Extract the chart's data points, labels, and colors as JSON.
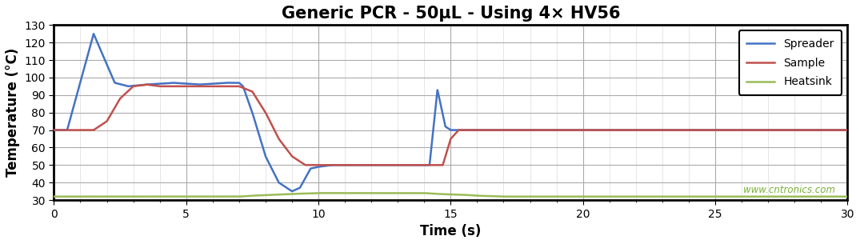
{
  "title": "Generic PCR - 50μL - Using 4× HV56",
  "xlabel": "Time (s)",
  "ylabel": "Temperature (°C)",
  "xlim": [
    0,
    30
  ],
  "ylim": [
    30,
    130
  ],
  "yticks": [
    30,
    40,
    50,
    60,
    70,
    80,
    90,
    100,
    110,
    120,
    130
  ],
  "xticks": [
    0,
    5,
    10,
    15,
    20,
    25,
    30
  ],
  "spreader_color": "#4472C4",
  "sample_color": "#C0504D",
  "heatsink_color": "#9BBB59",
  "watermark": "www.cntronics.com",
  "watermark_color": "#7BB038",
  "bg_color": "#FFFFFF",
  "plot_bg_color": "#FFFFFF",
  "major_grid_color": "#AAAAAA",
  "minor_grid_color": "#DDDDDD",
  "title_fontsize": 15,
  "axis_label_fontsize": 12,
  "tick_fontsize": 10,
  "line_width": 1.8
}
